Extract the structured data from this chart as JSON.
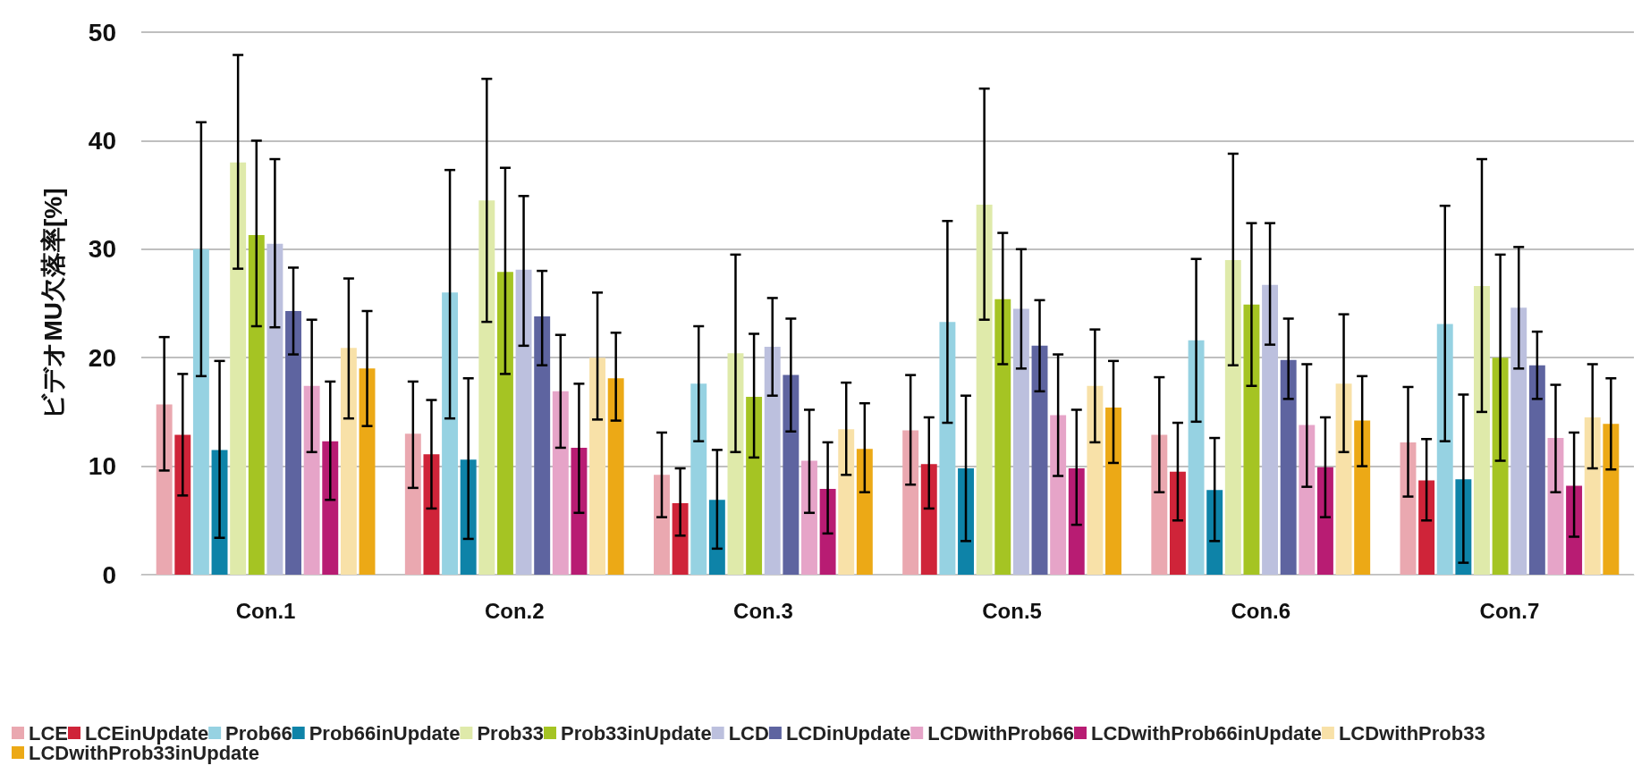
{
  "chart_data": {
    "type": "bar",
    "ylabel": "ビデオMU欠落率[%]",
    "categories": [
      "Con.1",
      "Con.2",
      "Con.3",
      "Con.5",
      "Con.6",
      "Con.7"
    ],
    "ylim": [
      0,
      50
    ],
    "yticks": [
      0,
      10,
      20,
      30,
      40,
      50
    ],
    "grid": "y",
    "legend": "bottom",
    "series": [
      {
        "name": "LCE",
        "color": "#eaa8b0",
        "values": [
          15.7,
          13.0,
          9.2,
          13.3,
          12.9,
          12.2
        ],
        "errors": [
          [
            9.6,
            21.9
          ],
          [
            8.0,
            17.8
          ],
          [
            5.3,
            13.1
          ],
          [
            8.3,
            18.4
          ],
          [
            7.6,
            18.2
          ],
          [
            7.2,
            17.3
          ]
        ]
      },
      {
        "name": "LCEinUpdate",
        "color": "#cf2439",
        "values": [
          12.9,
          11.1,
          6.6,
          10.2,
          9.5,
          8.7
        ],
        "errors": [
          [
            7.3,
            18.5
          ],
          [
            6.1,
            16.1
          ],
          [
            3.6,
            9.8
          ],
          [
            6.1,
            14.5
          ],
          [
            5.0,
            14.0
          ],
          [
            5.0,
            12.5
          ]
        ]
      },
      {
        "name": "Prob66",
        "color": "#96d2e2",
        "values": [
          30.0,
          26.0,
          17.6,
          23.3,
          21.6,
          23.1
        ],
        "errors": [
          [
            18.3,
            41.7
          ],
          [
            14.4,
            37.3
          ],
          [
            12.3,
            22.9
          ],
          [
            14.0,
            32.6
          ],
          [
            14.1,
            29.1
          ],
          [
            12.3,
            34.0
          ]
        ]
      },
      {
        "name": "Prob66inUpdate",
        "color": "#0e83a8",
        "values": [
          11.5,
          10.6,
          6.9,
          9.8,
          7.8,
          8.8
        ],
        "errors": [
          [
            3.4,
            19.7
          ],
          [
            3.3,
            18.1
          ],
          [
            2.4,
            11.5
          ],
          [
            3.1,
            16.5
          ],
          [
            3.1,
            12.6
          ],
          [
            1.1,
            16.6
          ]
        ]
      },
      {
        "name": "Prob33",
        "color": "#dfeaaa",
        "values": [
          38.0,
          34.5,
          20.4,
          34.1,
          29.0,
          26.6
        ],
        "errors": [
          [
            28.2,
            47.9
          ],
          [
            23.3,
            45.7
          ],
          [
            11.3,
            29.5
          ],
          [
            23.5,
            44.8
          ],
          [
            19.3,
            38.8
          ],
          [
            15.0,
            38.3
          ]
        ]
      },
      {
        "name": "Prob33inUpdate",
        "color": "#a5c423",
        "values": [
          31.3,
          27.9,
          16.4,
          25.4,
          24.9,
          20.0
        ],
        "errors": [
          [
            22.9,
            40.0
          ],
          [
            18.5,
            37.5
          ],
          [
            10.8,
            22.2
          ],
          [
            19.4,
            31.5
          ],
          [
            17.4,
            32.4
          ],
          [
            10.5,
            29.5
          ]
        ]
      },
      {
        "name": "LCD",
        "color": "#bcc0de",
        "values": [
          30.5,
          28.1,
          21.0,
          24.5,
          26.7,
          24.6
        ],
        "errors": [
          [
            22.8,
            38.3
          ],
          [
            21.1,
            34.9
          ],
          [
            16.5,
            25.5
          ],
          [
            19.0,
            30.0
          ],
          [
            21.2,
            32.4
          ],
          [
            19.0,
            30.2
          ]
        ]
      },
      {
        "name": "LCDinUpdate",
        "color": "#5e64a0",
        "values": [
          24.3,
          23.8,
          18.4,
          21.1,
          19.8,
          19.3
        ],
        "errors": [
          [
            20.3,
            28.3
          ],
          [
            19.3,
            28.0
          ],
          [
            13.2,
            23.6
          ],
          [
            16.9,
            25.3
          ],
          [
            16.2,
            23.6
          ],
          [
            16.2,
            22.4
          ]
        ]
      },
      {
        "name": "LCDwithProb66",
        "color": "#e6a4c8",
        "values": [
          17.4,
          16.9,
          10.5,
          14.7,
          13.8,
          12.6
        ],
        "errors": [
          [
            11.3,
            23.5
          ],
          [
            11.7,
            22.1
          ],
          [
            5.7,
            15.2
          ],
          [
            9.1,
            20.3
          ],
          [
            8.1,
            19.4
          ],
          [
            7.6,
            17.5
          ]
        ]
      },
      {
        "name": "LCDwithProb66inUpdate",
        "color": "#b81c73",
        "values": [
          12.3,
          11.7,
          7.9,
          9.8,
          9.9,
          8.2
        ],
        "errors": [
          [
            6.9,
            17.8
          ],
          [
            5.7,
            17.6
          ],
          [
            3.8,
            12.2
          ],
          [
            4.6,
            15.2
          ],
          [
            5.3,
            14.5
          ],
          [
            3.5,
            13.1
          ]
        ]
      },
      {
        "name": "LCDwithProb33",
        "color": "#f8e1a8",
        "values": [
          20.9,
          20.0,
          13.4,
          17.4,
          17.6,
          14.5
        ],
        "errors": [
          [
            14.4,
            27.3
          ],
          [
            14.3,
            26.0
          ],
          [
            9.2,
            17.7
          ],
          [
            12.2,
            22.6
          ],
          [
            11.3,
            24.0
          ],
          [
            9.8,
            19.4
          ]
        ]
      },
      {
        "name": "LCDwithProb33inUpdate",
        "color": "#eca916",
        "values": [
          19.0,
          18.1,
          11.6,
          15.4,
          14.2,
          13.9
        ],
        "errors": [
          [
            13.7,
            24.3
          ],
          [
            14.2,
            22.3
          ],
          [
            7.6,
            15.8
          ],
          [
            10.3,
            19.7
          ],
          [
            10.0,
            18.3
          ],
          [
            9.7,
            18.1
          ]
        ]
      }
    ]
  }
}
